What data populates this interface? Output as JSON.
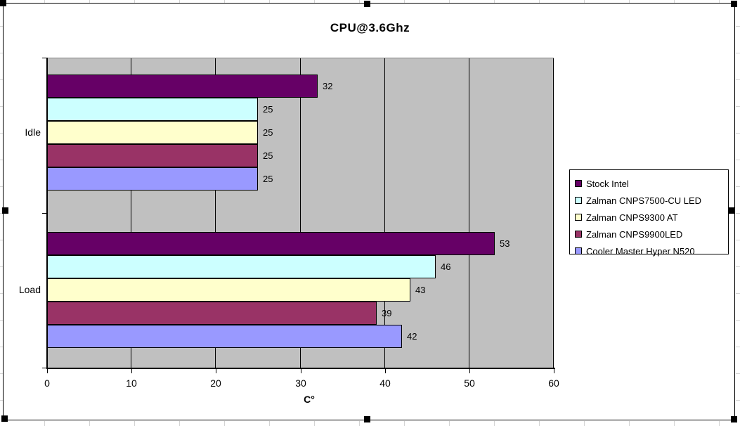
{
  "chart_data": {
    "type": "bar",
    "orientation": "horizontal",
    "title": "CPU@3.6Ghz",
    "xlabel": "C°",
    "categories": [
      "Idle",
      "Load"
    ],
    "series": [
      {
        "name": "Stock Intel",
        "color": "#660066",
        "values": [
          32,
          53
        ]
      },
      {
        "name": "Zalman CNPS7500-CU LED",
        "color": "#CCFFFF",
        "values": [
          25,
          46
        ]
      },
      {
        "name": "Zalman CNPS9300 AT",
        "color": "#FFFFCC",
        "values": [
          25,
          43
        ]
      },
      {
        "name": "Zalman CNPS9900LED",
        "color": "#993366",
        "values": [
          25,
          39
        ]
      },
      {
        "name": "Cooler Master Hyper N520",
        "color": "#9999FF",
        "values": [
          25,
          42
        ]
      }
    ],
    "xlim": [
      0,
      60
    ],
    "xticks": [
      0,
      10,
      20,
      30,
      40,
      50,
      60
    ],
    "grid": true,
    "data_labels": true,
    "legend_position": "right",
    "plot_bg": "#C0C0C0",
    "gridline_color": "#000000",
    "chart_bg": "#FFFFFF"
  },
  "selection": {
    "handle_color": "#000000",
    "handles": [
      "top-left",
      "top-middle",
      "top-right",
      "middle-left",
      "middle-right",
      "bottom-left",
      "bottom-middle",
      "bottom-right"
    ]
  }
}
